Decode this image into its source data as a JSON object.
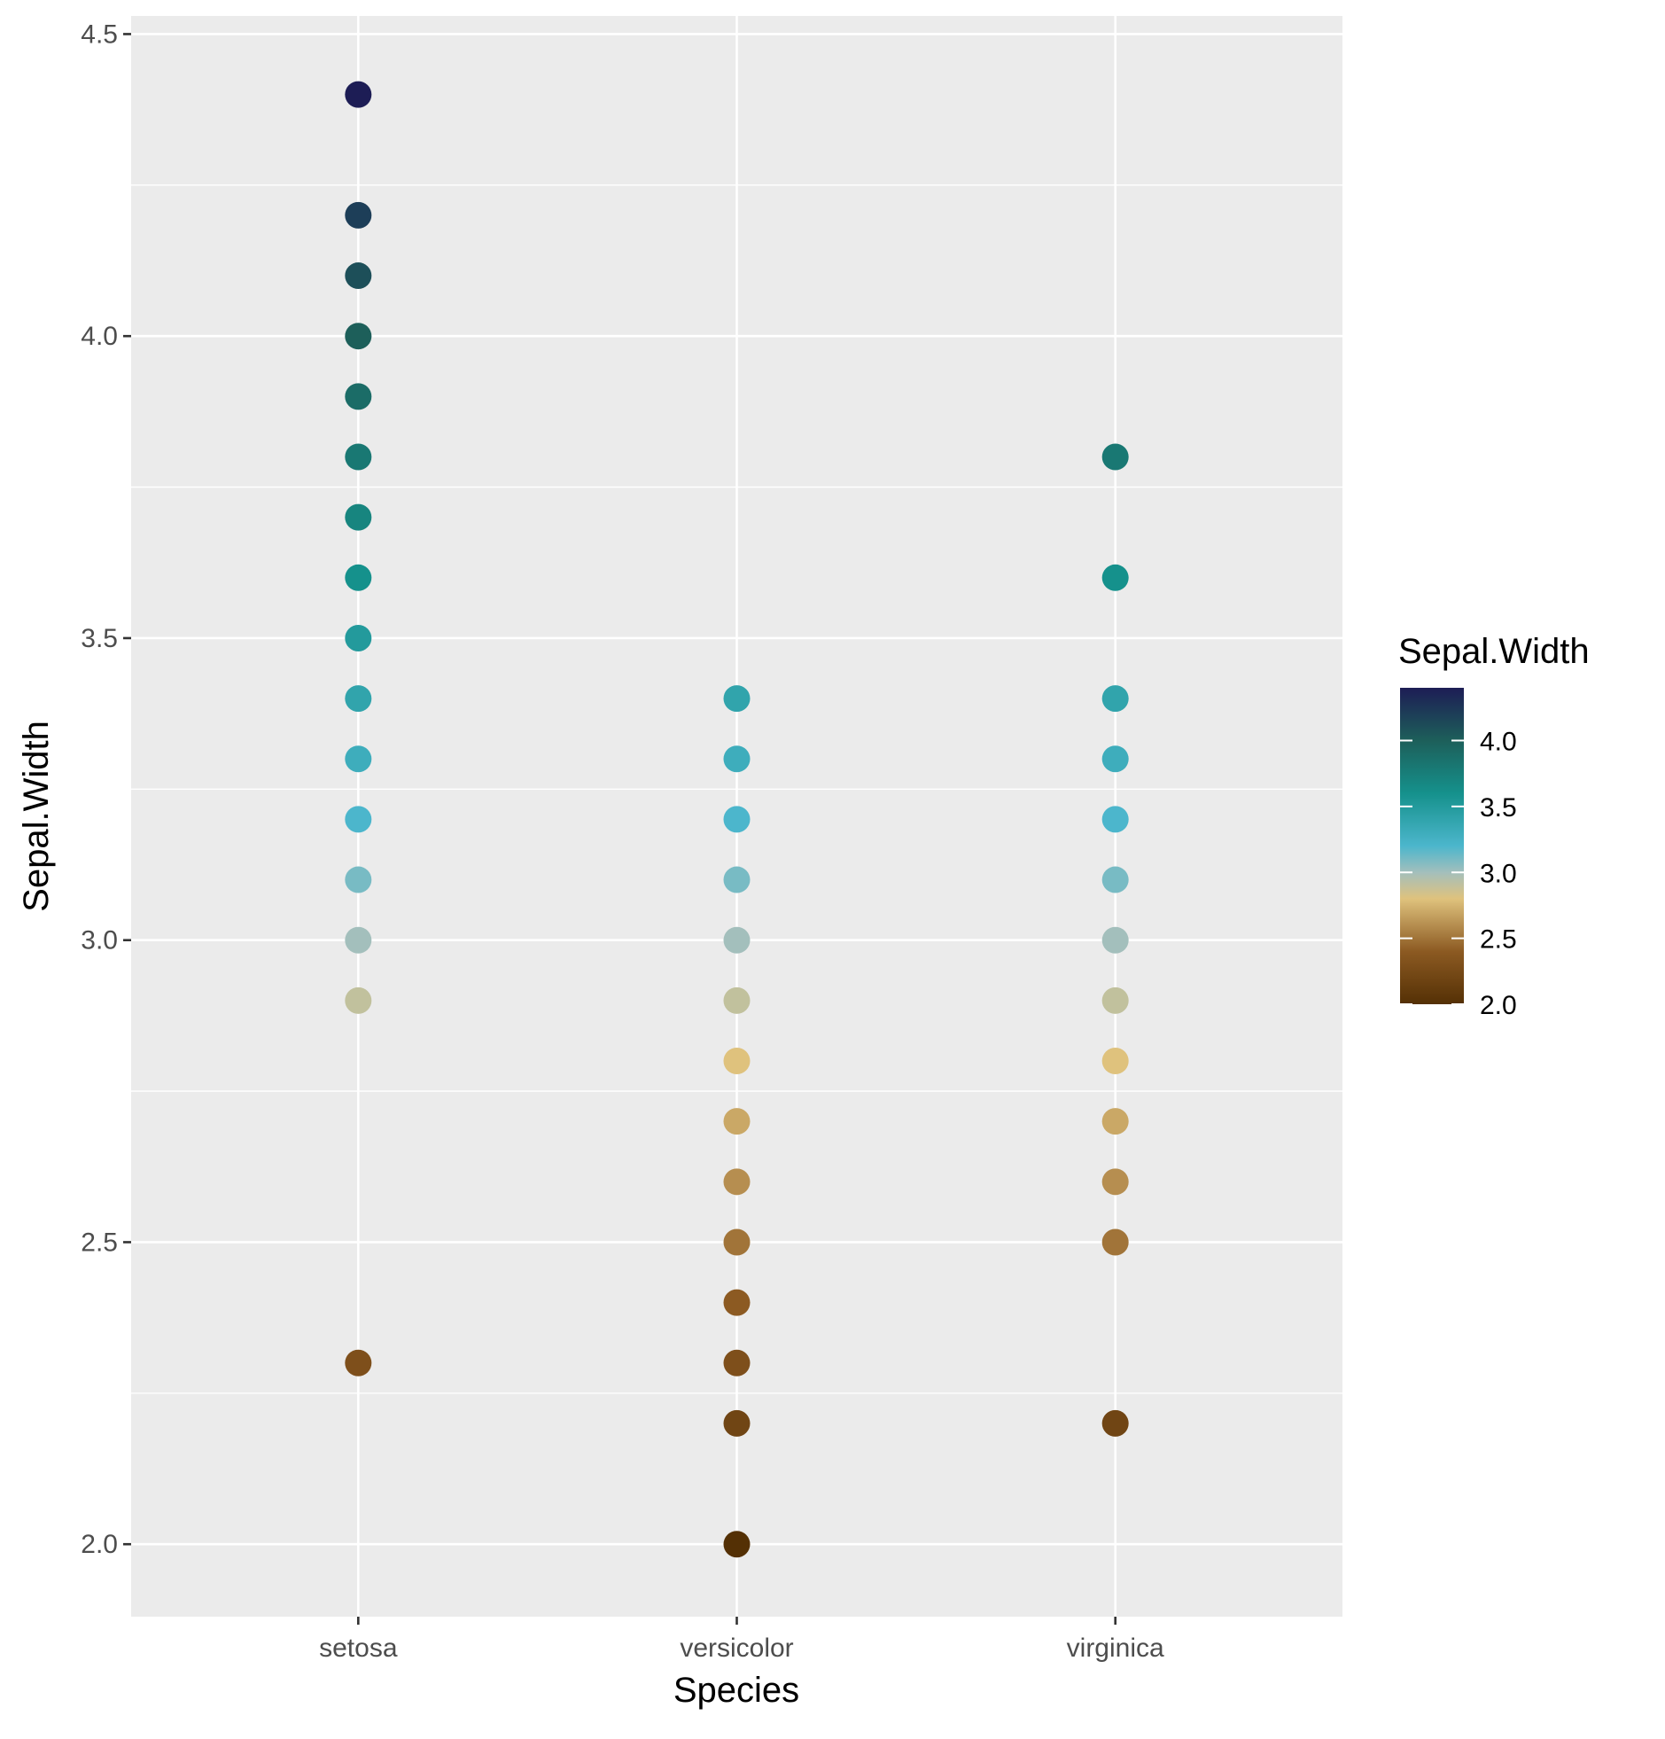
{
  "chart_data": {
    "type": "scatter",
    "xlabel": "Species",
    "ylabel": "Sepal.Width",
    "categories": [
      "setosa",
      "versicolor",
      "virginica"
    ],
    "ylim": [
      1.88,
      4.53
    ],
    "yticks": [
      "2.0",
      "2.5",
      "3.0",
      "3.5",
      "4.0",
      "4.5"
    ],
    "grid": true,
    "points": {
      "setosa": [
        4.4,
        4.2,
        4.1,
        4.0,
        3.9,
        3.8,
        3.7,
        3.6,
        3.5,
        3.4,
        3.3,
        3.2,
        3.1,
        3.0,
        2.9,
        2.3
      ],
      "versicolor": [
        3.4,
        3.3,
        3.2,
        3.1,
        3.0,
        2.9,
        2.8,
        2.7,
        2.6,
        2.5,
        2.4,
        2.3,
        2.2,
        2.0
      ],
      "virginica": [
        3.8,
        3.6,
        3.4,
        3.3,
        3.2,
        3.1,
        3.0,
        2.9,
        2.8,
        2.7,
        2.6,
        2.5,
        2.2
      ]
    },
    "color_scale": {
      "title": "Sepal.Width",
      "range": [
        2.0,
        4.4
      ],
      "labels": [
        "2.0",
        "2.5",
        "3.0",
        "3.5",
        "4.0"
      ],
      "stops": [
        {
          "value": 2.0,
          "color": "#543005"
        },
        {
          "value": 2.4,
          "color": "#8c5a22"
        },
        {
          "value": 2.8,
          "color": "#dfc27d"
        },
        {
          "value": 3.0,
          "color": "#a3bfbc"
        },
        {
          "value": 3.2,
          "color": "#4cb6cc"
        },
        {
          "value": 3.6,
          "color": "#15918c"
        },
        {
          "value": 4.0,
          "color": "#1d5f5a"
        },
        {
          "value": 4.4,
          "color": "#1d1d55"
        }
      ]
    },
    "colors": {
      "panel_background": "#ebebeb",
      "grid_line": "#ffffff",
      "tick_text": "#4d4d4d",
      "tick_mark": "#333333"
    }
  }
}
